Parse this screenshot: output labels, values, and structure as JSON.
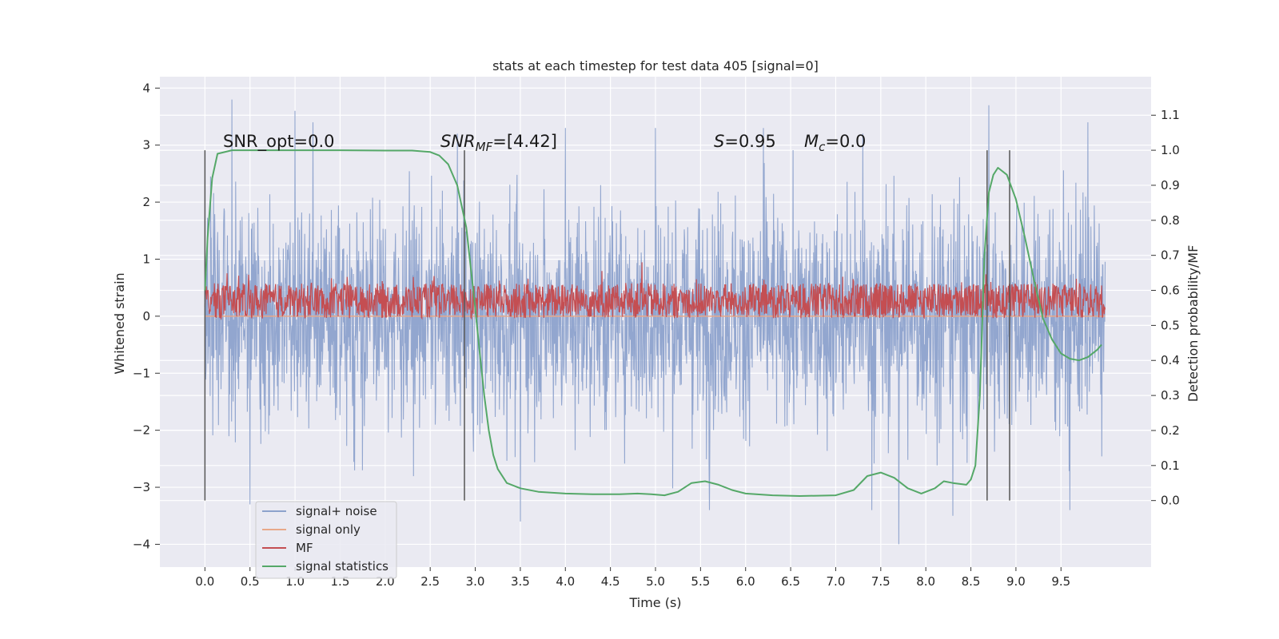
{
  "chart_data": {
    "type": "line",
    "title": "stats at each timestep for test data 405 [signal=0]",
    "xlabel": "Time (s)",
    "ylabel_left": "Whitened strain",
    "ylabel_right": "Detection probability/MF",
    "xlim": [
      -0.5,
      10.5
    ],
    "ylim_left": [
      -4.4,
      4.2
    ],
    "ylim_right": [
      -0.19,
      1.21
    ],
    "x_ticks": [
      "0.0",
      "0.5",
      "1.0",
      "1.5",
      "2.0",
      "2.5",
      "3.0",
      "3.5",
      "4.0",
      "4.5",
      "5.0",
      "5.5",
      "6.0",
      "6.5",
      "7.0",
      "7.5",
      "8.0",
      "8.5",
      "9.0",
      "9.5"
    ],
    "y_ticks_left": [
      "4",
      "3",
      "2",
      "1",
      "0",
      "−1",
      "−2",
      "−3",
      "−4"
    ],
    "y_ticks_right": [
      "1.1",
      "1.0",
      "0.9",
      "0.8",
      "0.7",
      "0.6",
      "0.5",
      "0.4",
      "0.3",
      "0.2",
      "0.1",
      "0.0"
    ],
    "grid": true,
    "legend_position": "lower-left",
    "annotations": {
      "snr_opt": "SNR_opt=0.0",
      "snr_mf_sym": "SNR",
      "snr_mf_sub": "MF",
      "snr_mf_val": "=[4.42]",
      "s_sym": "S",
      "s_val": "=0.95",
      "mc_sym": "M",
      "mc_sub": "c",
      "mc_val": "=0.0"
    },
    "vertical_markers_x": [
      0.0,
      2.88,
      8.68,
      8.93
    ],
    "series": [
      {
        "name": "signal+ noise",
        "axis": "left",
        "color": "#8da2cc",
        "x_range": [
          0.0,
          9.99
        ],
        "envelope_typical": [
          -1.9,
          1.9
        ],
        "peaks_high": [
          [
            0.3,
            3.8
          ],
          [
            1.0,
            3.6
          ],
          [
            1.2,
            3.4
          ],
          [
            4.0,
            3.3
          ],
          [
            5.0,
            3.3
          ],
          [
            6.2,
            3.3
          ],
          [
            7.3,
            3.2
          ],
          [
            8.7,
            3.7
          ],
          [
            9.8,
            3.4
          ]
        ],
        "peaks_low": [
          [
            0.5,
            -3.3
          ],
          [
            3.5,
            -3.6
          ],
          [
            5.6,
            -3.4
          ],
          [
            7.4,
            -3.4
          ],
          [
            7.7,
            -4.0
          ],
          [
            8.3,
            -3.5
          ],
          [
            9.6,
            -3.4
          ]
        ]
      },
      {
        "name": "signal only",
        "axis": "left",
        "color": "#e8a889",
        "x": [
          0.0,
          9.99
        ],
        "y": [
          0.0,
          0.0
        ]
      },
      {
        "name": "MF",
        "axis": "right",
        "color": "#c44e52",
        "x_range": [
          0.0,
          9.99
        ],
        "band": [
          0.52,
          0.62
        ],
        "peak": [
          4.85,
          0.68
        ]
      },
      {
        "name": "signal statistics",
        "axis": "right",
        "color": "#55a868",
        "x": [
          0.0,
          0.03,
          0.08,
          0.14,
          0.3,
          0.6,
          1.0,
          1.5,
          2.0,
          2.3,
          2.5,
          2.6,
          2.7,
          2.8,
          2.9,
          3.0,
          3.05,
          3.1,
          3.15,
          3.2,
          3.25,
          3.35,
          3.5,
          3.7,
          4.0,
          4.3,
          4.6,
          4.8,
          4.95,
          5.1,
          5.25,
          5.4,
          5.55,
          5.7,
          5.85,
          6.0,
          6.3,
          6.6,
          7.0,
          7.2,
          7.35,
          7.5,
          7.65,
          7.8,
          7.95,
          8.1,
          8.2,
          8.3,
          8.45,
          8.5,
          8.55,
          8.6,
          8.65,
          8.7,
          8.75,
          8.8,
          8.9,
          9.0,
          9.1,
          9.2,
          9.3,
          9.4,
          9.5,
          9.6,
          9.7,
          9.8,
          9.9,
          9.95
        ],
        "y": [
          0.6,
          0.75,
          0.92,
          0.99,
          1.0,
          1.0,
          1.0,
          1.0,
          0.999,
          0.999,
          0.995,
          0.985,
          0.96,
          0.9,
          0.78,
          0.55,
          0.42,
          0.3,
          0.2,
          0.13,
          0.09,
          0.05,
          0.035,
          0.025,
          0.02,
          0.018,
          0.018,
          0.02,
          0.018,
          0.015,
          0.025,
          0.05,
          0.055,
          0.045,
          0.03,
          0.02,
          0.015,
          0.013,
          0.015,
          0.03,
          0.07,
          0.08,
          0.065,
          0.035,
          0.02,
          0.035,
          0.055,
          0.05,
          0.045,
          0.06,
          0.1,
          0.3,
          0.7,
          0.88,
          0.93,
          0.95,
          0.93,
          0.86,
          0.75,
          0.63,
          0.52,
          0.46,
          0.42,
          0.405,
          0.4,
          0.41,
          0.43,
          0.445
        ]
      }
    ]
  }
}
